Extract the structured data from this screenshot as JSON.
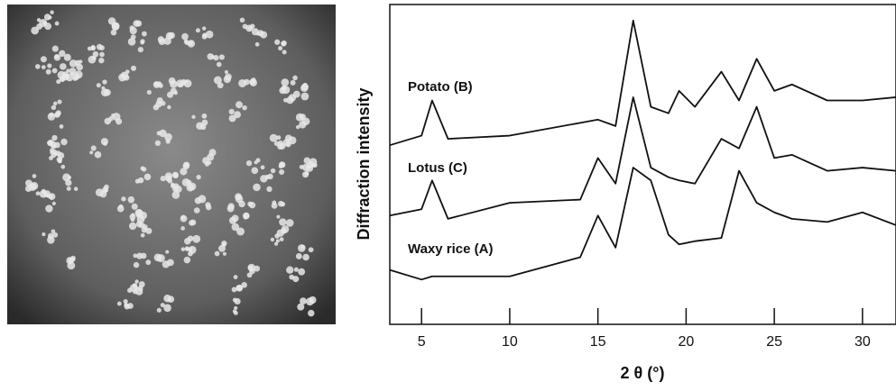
{
  "chart_data": {
    "type": "line",
    "y_label": "Diffraction intensity",
    "x_label": "2 θ (°)",
    "x": [
      3.2,
      5,
      5.6,
      6.5,
      10,
      14,
      15,
      16,
      17,
      18,
      19,
      19.6,
      20.5,
      22,
      23,
      24,
      25,
      26,
      28,
      30,
      31.9
    ],
    "series": [
      {
        "name": "Potato (B)",
        "color": "#111111",
        "values": [
          56,
          59,
          70,
          58,
          59,
          63,
          64,
          62,
          95,
          68,
          66,
          73,
          68,
          79,
          70,
          83,
          73,
          75,
          70,
          70,
          71
        ]
      },
      {
        "name": "Lotus (C)",
        "color": "#111111",
        "values": [
          34,
          36,
          45,
          33,
          38,
          39,
          52,
          44,
          71,
          49,
          46,
          45,
          44,
          58,
          55,
          68,
          52,
          53,
          48,
          49,
          48
        ]
      },
      {
        "name": "Waxy rice (A)",
        "color": "#111111",
        "values": [
          17,
          14,
          15,
          15,
          15,
          21,
          34,
          24,
          49,
          45,
          28,
          25,
          26,
          27,
          48,
          38,
          35,
          33,
          32,
          35,
          31
        ]
      }
    ],
    "xlim": [
      3.2,
      31.9
    ],
    "xticks": [
      5,
      10,
      15,
      20,
      25,
      30
    ],
    "ylim": [
      0,
      100
    ]
  }
}
